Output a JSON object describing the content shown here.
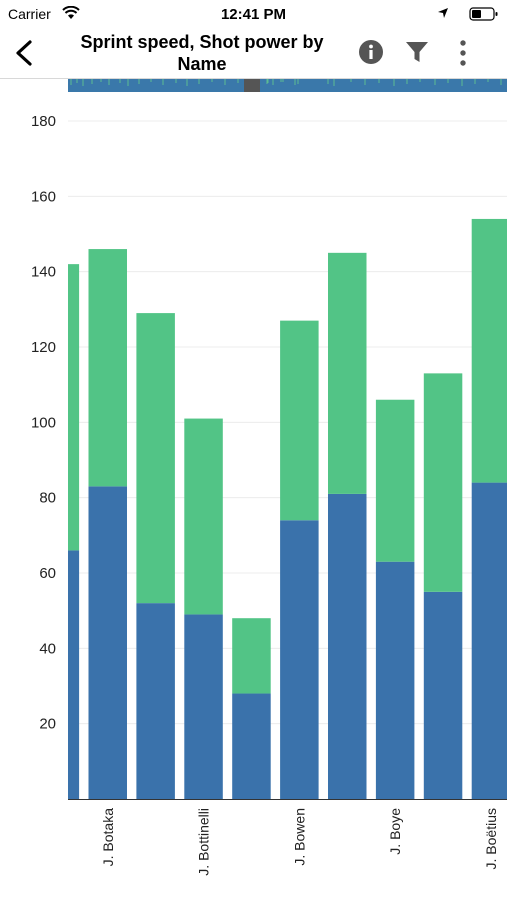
{
  "status_bar": {
    "carrier": "Carrier",
    "time": "12:41 PM"
  },
  "header": {
    "title": "Sprint speed, Shot power by Name",
    "back_icon": "chevron-left-icon",
    "info_icon": "info-icon",
    "filter_icon": "filter-icon",
    "more_icon": "more-vertical-icon"
  },
  "colors": {
    "sprint_speed": "#3a72ab",
    "shot_power": "#52c486",
    "grid": "#ececec",
    "axis": "#333333"
  },
  "chart_data": {
    "type": "bar",
    "stacked": true,
    "ylim": [
      0,
      180
    ],
    "yticks": [
      20,
      40,
      60,
      80,
      100,
      120,
      140,
      160,
      180
    ],
    "grid": true,
    "categories": [
      "",
      "J. Botaka",
      "",
      "J. Bottinelli",
      "",
      "J. Bowen",
      "",
      "J. Boye",
      "",
      "J. Boëtius"
    ],
    "series": [
      {
        "values": [
          66,
          83,
          52,
          49,
          28,
          74,
          81,
          63,
          55,
          84
        ]
      },
      {
        "values": [
          76,
          63,
          77,
          52,
          20,
          53,
          64,
          43,
          58,
          70
        ]
      }
    ]
  }
}
